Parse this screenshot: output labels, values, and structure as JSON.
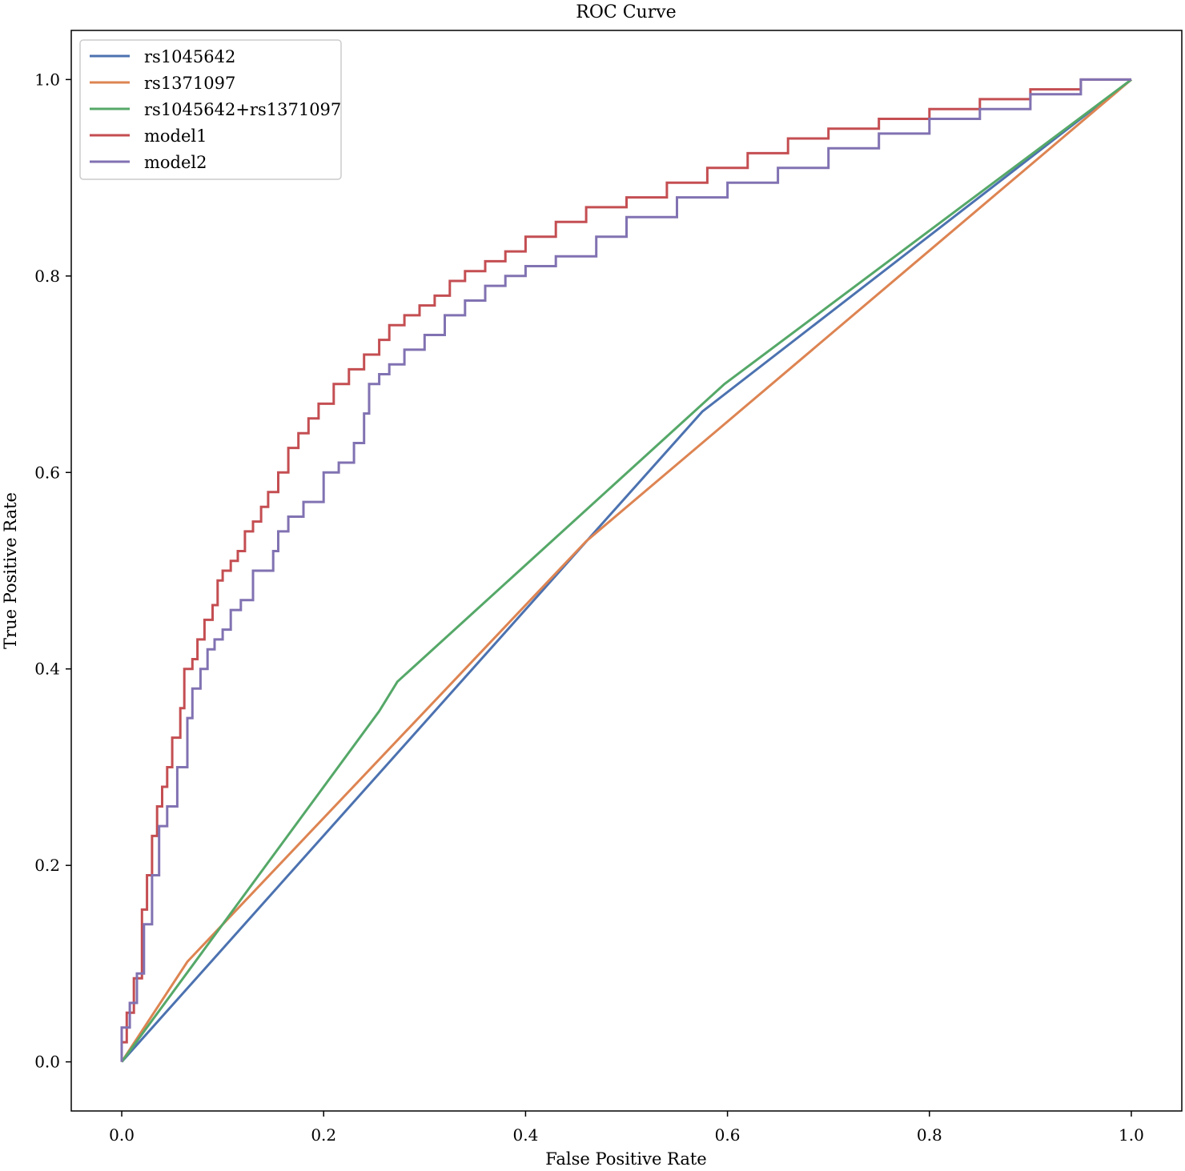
{
  "chart_data": {
    "type": "line",
    "title": "ROC Curve",
    "xlabel": "False Positive Rate",
    "ylabel": "True Positive Rate",
    "xlim": [
      -0.05,
      1.05
    ],
    "ylim": [
      -0.05,
      1.05
    ],
    "xticks": [
      0.0,
      0.2,
      0.4,
      0.6,
      0.8,
      1.0
    ],
    "yticks": [
      0.0,
      0.2,
      0.4,
      0.6,
      0.8,
      1.0
    ],
    "xtick_labels": [
      "0.0",
      "0.2",
      "0.4",
      "0.6",
      "0.8",
      "1.0"
    ],
    "ytick_labels": [
      "0.0",
      "0.2",
      "0.4",
      "0.6",
      "0.8",
      "1.0"
    ],
    "grid": false,
    "legend_position": "upper-left",
    "series": [
      {
        "name": "rs1045642",
        "color": "#4c72b0",
        "x": [
          0.0,
          0.575,
          1.0
        ],
        "y": [
          0.0,
          0.662,
          1.0
        ]
      },
      {
        "name": "rs1371097",
        "color": "#dd8452",
        "x": [
          0.0,
          0.065,
          0.46,
          1.0
        ],
        "y": [
          0.0,
          0.102,
          0.53,
          1.0
        ]
      },
      {
        "name": "rs1045642+rs1371097",
        "color": "#55a868",
        "x": [
          0.0,
          0.255,
          0.273,
          0.597,
          1.0
        ],
        "y": [
          0.0,
          0.357,
          0.387,
          0.69,
          1.0
        ]
      },
      {
        "name": "model1",
        "color": "#c44e52",
        "x": [
          0.0,
          0.0,
          0.005,
          0.005,
          0.012,
          0.012,
          0.02,
          0.02,
          0.025,
          0.025,
          0.03,
          0.03,
          0.035,
          0.035,
          0.04,
          0.04,
          0.045,
          0.045,
          0.05,
          0.05,
          0.058,
          0.058,
          0.062,
          0.062,
          0.07,
          0.07,
          0.075,
          0.075,
          0.082,
          0.082,
          0.09,
          0.09,
          0.095,
          0.095,
          0.1,
          0.1,
          0.108,
          0.108,
          0.115,
          0.115,
          0.122,
          0.122,
          0.13,
          0.13,
          0.138,
          0.138,
          0.145,
          0.145,
          0.155,
          0.155,
          0.165,
          0.165,
          0.175,
          0.175,
          0.185,
          0.185,
          0.195,
          0.195,
          0.21,
          0.21,
          0.225,
          0.225,
          0.24,
          0.24,
          0.255,
          0.255,
          0.265,
          0.265,
          0.28,
          0.28,
          0.295,
          0.295,
          0.31,
          0.31,
          0.325,
          0.325,
          0.34,
          0.34,
          0.36,
          0.36,
          0.38,
          0.38,
          0.4,
          0.4,
          0.43,
          0.43,
          0.46,
          0.46,
          0.5,
          0.5,
          0.54,
          0.54,
          0.58,
          0.58,
          0.62,
          0.62,
          0.66,
          0.66,
          0.7,
          0.7,
          0.75,
          0.75,
          0.8,
          0.8,
          0.85,
          0.85,
          0.9,
          0.9,
          0.95,
          0.95,
          1.0
        ],
        "y": [
          0.0,
          0.02,
          0.02,
          0.05,
          0.05,
          0.085,
          0.085,
          0.155,
          0.155,
          0.19,
          0.19,
          0.23,
          0.23,
          0.26,
          0.26,
          0.28,
          0.28,
          0.3,
          0.3,
          0.33,
          0.33,
          0.36,
          0.36,
          0.4,
          0.4,
          0.41,
          0.41,
          0.43,
          0.43,
          0.45,
          0.45,
          0.465,
          0.465,
          0.49,
          0.49,
          0.5,
          0.5,
          0.51,
          0.51,
          0.52,
          0.52,
          0.54,
          0.54,
          0.55,
          0.55,
          0.565,
          0.565,
          0.58,
          0.58,
          0.6,
          0.6,
          0.625,
          0.625,
          0.64,
          0.64,
          0.655,
          0.655,
          0.67,
          0.67,
          0.69,
          0.69,
          0.705,
          0.705,
          0.72,
          0.72,
          0.735,
          0.735,
          0.75,
          0.75,
          0.76,
          0.76,
          0.77,
          0.77,
          0.78,
          0.78,
          0.795,
          0.795,
          0.805,
          0.805,
          0.815,
          0.815,
          0.825,
          0.825,
          0.84,
          0.84,
          0.855,
          0.855,
          0.87,
          0.87,
          0.88,
          0.88,
          0.895,
          0.895,
          0.91,
          0.91,
          0.925,
          0.925,
          0.94,
          0.94,
          0.95,
          0.95,
          0.96,
          0.96,
          0.97,
          0.97,
          0.98,
          0.98,
          0.99,
          0.99,
          1.0,
          1.0
        ]
      },
      {
        "name": "model2",
        "color": "#8172b2",
        "x": [
          0.0,
          0.0,
          0.008,
          0.008,
          0.015,
          0.015,
          0.022,
          0.022,
          0.03,
          0.03,
          0.037,
          0.037,
          0.045,
          0.045,
          0.055,
          0.055,
          0.065,
          0.065,
          0.07,
          0.07,
          0.078,
          0.078,
          0.085,
          0.085,
          0.092,
          0.092,
          0.1,
          0.1,
          0.108,
          0.108,
          0.118,
          0.118,
          0.13,
          0.13,
          0.15,
          0.15,
          0.155,
          0.155,
          0.165,
          0.165,
          0.18,
          0.18,
          0.2,
          0.2,
          0.215,
          0.215,
          0.23,
          0.23,
          0.24,
          0.24,
          0.245,
          0.245,
          0.255,
          0.255,
          0.265,
          0.265,
          0.28,
          0.28,
          0.3,
          0.3,
          0.32,
          0.32,
          0.34,
          0.34,
          0.36,
          0.36,
          0.38,
          0.38,
          0.4,
          0.4,
          0.43,
          0.43,
          0.47,
          0.47,
          0.5,
          0.5,
          0.55,
          0.55,
          0.6,
          0.6,
          0.65,
          0.65,
          0.7,
          0.7,
          0.75,
          0.75,
          0.8,
          0.8,
          0.85,
          0.85,
          0.9,
          0.9,
          0.95,
          0.95,
          1.0
        ],
        "y": [
          0.0,
          0.035,
          0.035,
          0.06,
          0.06,
          0.09,
          0.09,
          0.14,
          0.14,
          0.19,
          0.19,
          0.24,
          0.24,
          0.26,
          0.26,
          0.3,
          0.3,
          0.35,
          0.35,
          0.38,
          0.38,
          0.4,
          0.4,
          0.42,
          0.42,
          0.43,
          0.43,
          0.44,
          0.44,
          0.46,
          0.46,
          0.47,
          0.47,
          0.5,
          0.5,
          0.52,
          0.52,
          0.54,
          0.54,
          0.555,
          0.555,
          0.57,
          0.57,
          0.6,
          0.6,
          0.61,
          0.61,
          0.63,
          0.63,
          0.66,
          0.66,
          0.69,
          0.69,
          0.7,
          0.7,
          0.71,
          0.71,
          0.725,
          0.725,
          0.74,
          0.74,
          0.76,
          0.76,
          0.775,
          0.775,
          0.79,
          0.79,
          0.8,
          0.8,
          0.81,
          0.81,
          0.82,
          0.82,
          0.84,
          0.84,
          0.86,
          0.86,
          0.88,
          0.88,
          0.895,
          0.895,
          0.91,
          0.91,
          0.93,
          0.93,
          0.945,
          0.945,
          0.96,
          0.96,
          0.97,
          0.97,
          0.985,
          0.985,
          1.0,
          1.0
        ]
      }
    ]
  }
}
